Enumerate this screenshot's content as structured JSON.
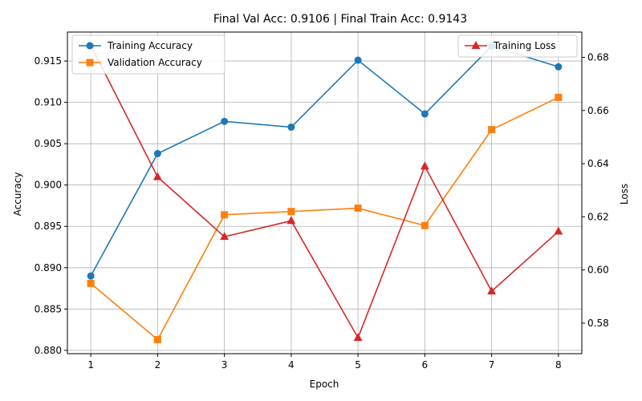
{
  "chart_data": {
    "type": "line",
    "title": "Final Val Acc: 0.9106 | Final Train Acc: 0.9143",
    "xlabel": "Epoch",
    "ylabel": "Accuracy",
    "y2label": "Loss",
    "x": [
      1,
      2,
      3,
      4,
      5,
      6,
      7,
      8
    ],
    "xticks": [
      "1",
      "2",
      "3",
      "4",
      "5",
      "6",
      "7",
      "8"
    ],
    "ylim": [
      0.8796,
      0.9185
    ],
    "yticks": [
      0.88,
      0.885,
      0.89,
      0.895,
      0.9,
      0.905,
      0.91,
      0.915
    ],
    "ytick_labels": [
      "0.880",
      "0.885",
      "0.890",
      "0.895",
      "0.900",
      "0.905",
      "0.910",
      "0.915"
    ],
    "y2lim": [
      0.5685,
      0.6895
    ],
    "y2ticks": [
      0.58,
      0.6,
      0.62,
      0.64,
      0.66,
      0.68
    ],
    "y2tick_labels": [
      "0.58",
      "0.60",
      "0.62",
      "0.64",
      "0.66",
      "0.68"
    ],
    "grid": true,
    "series": [
      {
        "name": "Training Accuracy",
        "axis": "left",
        "color": "#1f77b4",
        "marker": "circle",
        "values": [
          0.889,
          0.9038,
          0.9077,
          0.907,
          0.9151,
          0.9086,
          0.9168,
          0.9143
        ]
      },
      {
        "name": "Validation Accuracy",
        "axis": "left",
        "color": "#ff7f0e",
        "marker": "square",
        "values": [
          0.8881,
          0.8813,
          0.8964,
          0.8968,
          0.8972,
          0.8951,
          0.9067,
          0.9106
        ]
      },
      {
        "name": "Training Loss",
        "axis": "right",
        "color": "#d62728",
        "marker": "triangle",
        "values": [
          0.6845,
          0.635,
          0.6125,
          0.6185,
          0.5745,
          0.639,
          0.592,
          0.6145
        ]
      }
    ],
    "legends": [
      {
        "placement": "upper-left",
        "entries": [
          "Training Accuracy",
          "Validation Accuracy"
        ]
      },
      {
        "placement": "upper-right",
        "entries": [
          "Training Loss"
        ]
      }
    ]
  }
}
